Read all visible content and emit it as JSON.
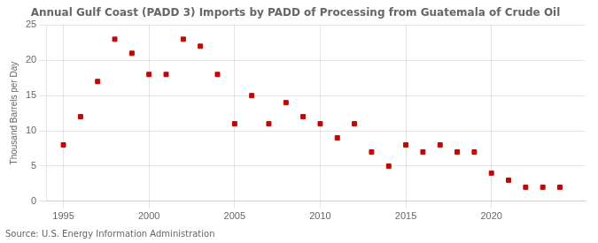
{
  "chart_data": {
    "type": "scatter",
    "title": "Annual Gulf Coast (PADD 3) Imports by PADD of Processing from Guatemala of Crude Oil",
    "ylabel": "Thousand Barrels per Day",
    "source": "Source: U.S. Energy Information Administration",
    "x": [
      1995,
      1996,
      1997,
      1998,
      1999,
      2000,
      2001,
      2002,
      2003,
      2004,
      2005,
      2006,
      2007,
      2008,
      2009,
      2010,
      2011,
      2012,
      2013,
      2014,
      2015,
      2016,
      2017,
      2018,
      2019,
      2020,
      2021,
      2022,
      2023,
      2024
    ],
    "values": [
      8,
      12,
      17,
      23,
      21,
      18,
      18,
      23,
      22,
      18,
      11,
      15,
      11,
      14,
      12,
      11,
      9,
      11,
      7,
      5,
      8,
      7,
      8,
      7,
      7,
      4,
      3,
      2,
      2,
      2
    ],
    "color": "#cc0000",
    "marker": "square",
    "xlim": [
      1994.0,
      2025.5
    ],
    "xticks": [
      1995,
      2000,
      2005,
      2010,
      2015,
      2020
    ],
    "ylim": [
      0,
      25
    ],
    "yticks": [
      0,
      5,
      10,
      15,
      20,
      25
    ],
    "grid": true
  }
}
